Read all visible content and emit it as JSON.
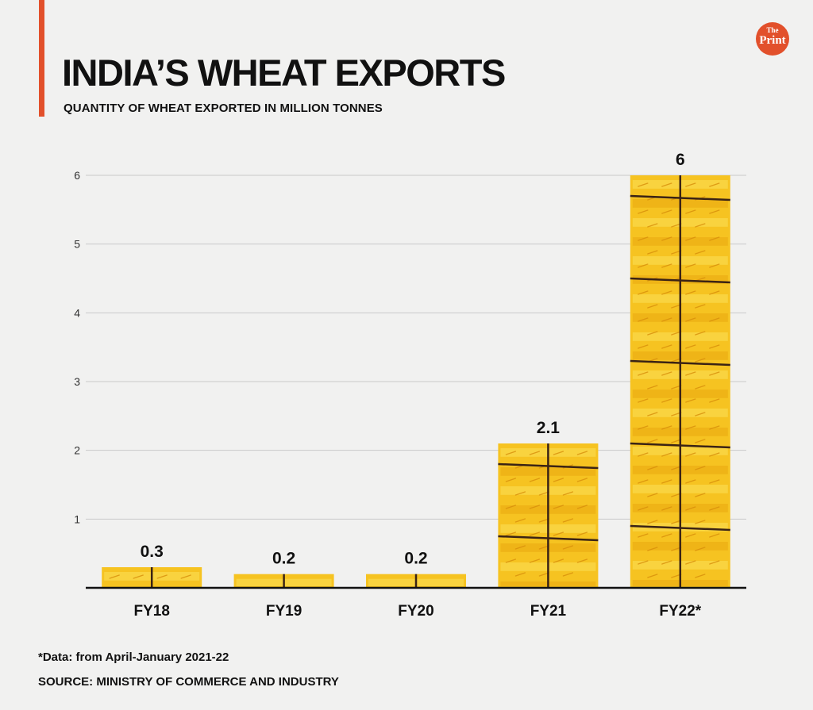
{
  "header": {
    "title": "INDIA’S WHEAT EXPORTS",
    "subtitle": "QUANTITY OF WHEAT EXPORTED IN MILLION TONNES"
  },
  "logo": {
    "line1": "The",
    "line2": "Print"
  },
  "footer": {
    "note": "*Data: from April-January 2021-22",
    "source": "SOURCE: MINISTRY OF COMMERCE AND INDUSTRY"
  },
  "colors": {
    "accent": "#e2502b",
    "bale_main": "#f6c321",
    "bale_dark": "#e9a710",
    "bale_light": "#fbe05a",
    "twine": "#3b2314",
    "grid": "#c9c9c9"
  },
  "chart_data": {
    "type": "bar",
    "title": "INDIA’S WHEAT EXPORTS",
    "subtitle": "QUANTITY OF WHEAT EXPORTED IN MILLION TONNES",
    "xlabel": "",
    "ylabel": "",
    "categories": [
      "FY18",
      "FY19",
      "FY20",
      "FY21",
      "FY22*"
    ],
    "values": [
      0.3,
      0.2,
      0.2,
      2.1,
      6
    ],
    "data_labels": [
      "0.3",
      "0.2",
      "0.2",
      "2.1",
      "6"
    ],
    "ylim": [
      0,
      6
    ],
    "yticks": [
      1,
      2,
      3,
      4,
      5,
      6
    ],
    "grid": true
  }
}
